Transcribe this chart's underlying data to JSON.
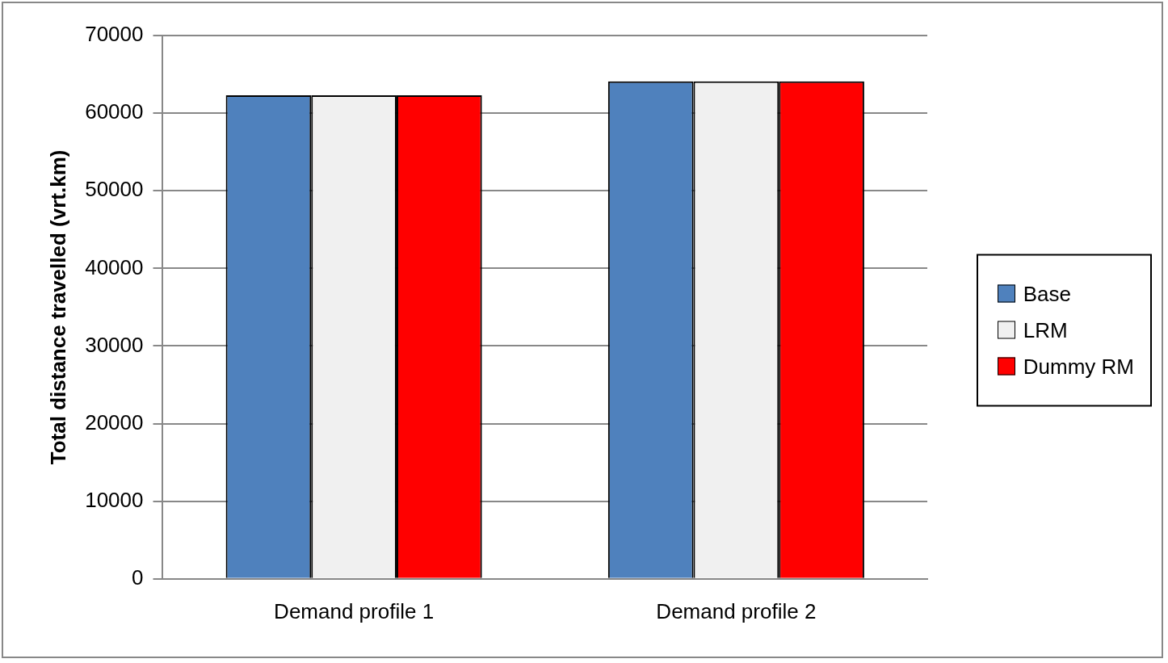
{
  "chart_data": {
    "type": "bar",
    "ylabel": "Total distance travelled (vrt.km)",
    "categories": [
      "Demand profile 1",
      "Demand profile 2"
    ],
    "series": [
      {
        "name": "Base",
        "color": "#4f81bd",
        "values": [
          62300,
          64100
        ]
      },
      {
        "name": "LRM",
        "color": "#f0f0f0",
        "values": [
          62300,
          64100
        ]
      },
      {
        "name": "Dummy RM",
        "color": "#ff0000",
        "values": [
          62300,
          64100
        ]
      }
    ],
    "ylim": [
      0,
      70000
    ],
    "yticks": [
      0,
      10000,
      20000,
      30000,
      40000,
      50000,
      60000,
      70000
    ],
    "grid": "y",
    "legend": "right"
  }
}
